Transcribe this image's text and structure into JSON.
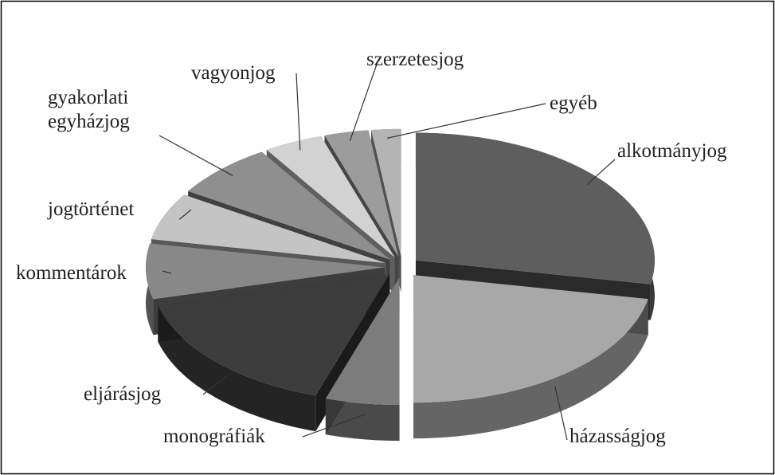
{
  "chart_data": {
    "type": "pie",
    "categories": [
      "alkotmányjog",
      "házasságjog",
      "monográfiák",
      "eljárásjog",
      "kommentárok",
      "jogtörténet",
      "gyakorlati\negyházjog",
      "vagyonjog",
      "szerzetesjog",
      "egyéb"
    ],
    "values": [
      28,
      22,
      5,
      16,
      7,
      6,
      7,
      4,
      3,
      2
    ],
    "colors": [
      "#5e5e5e",
      "#a8a8a8",
      "#7c7c7c",
      "#3c3c3c",
      "#888888",
      "#c4c4c4",
      "#8f8f8f",
      "#d2d2d2",
      "#9c9c9c",
      "#b4b4b4"
    ]
  }
}
